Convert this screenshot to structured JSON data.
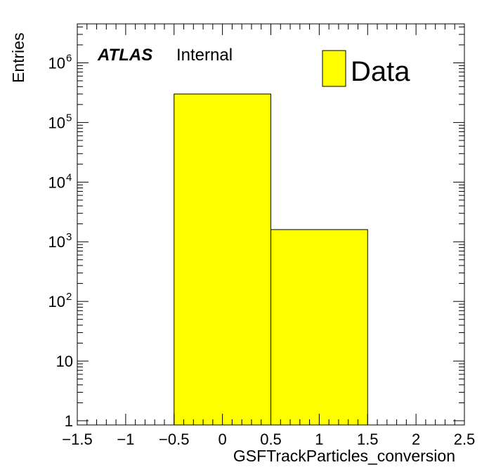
{
  "chart_data": {
    "type": "bar",
    "histogram": true,
    "xlabel": "GSFTrackParticles_conversion",
    "ylabel": "Entries",
    "xlim": [
      -1.5,
      2.5
    ],
    "ylim": [
      0.85,
      4500000
    ],
    "y_scale": "log",
    "grid": false,
    "legend_position": "top-right",
    "bins": [
      {
        "x_low": -0.5,
        "x_high": 0.5,
        "value": 300000
      },
      {
        "x_low": 0.5,
        "x_high": 1.5,
        "value": 1600
      }
    ],
    "series": [
      {
        "name": "Data",
        "color": "#ffff00",
        "values": [
          300000,
          1600
        ]
      }
    ],
    "x_ticks": [
      {
        "value": -1.5,
        "label": "−1.5"
      },
      {
        "value": -1,
        "label": "−1"
      },
      {
        "value": -0.5,
        "label": "−0.5"
      },
      {
        "value": 0,
        "label": "0"
      },
      {
        "value": 0.5,
        "label": "0.5"
      },
      {
        "value": 1,
        "label": "1"
      },
      {
        "value": 1.5,
        "label": "1.5"
      },
      {
        "value": 2,
        "label": "2"
      },
      {
        "value": 2.5,
        "label": "2.5"
      }
    ],
    "y_ticks": [
      {
        "value": 1,
        "base": "1",
        "exp": ""
      },
      {
        "value": 10,
        "base": "10",
        "exp": ""
      },
      {
        "value": 100,
        "base": "10",
        "exp": "2"
      },
      {
        "value": 1000,
        "base": "10",
        "exp": "3"
      },
      {
        "value": 10000,
        "base": "10",
        "exp": "4"
      },
      {
        "value": 100000,
        "base": "10",
        "exp": "5"
      },
      {
        "value": 1000000,
        "base": "10",
        "exp": "6"
      }
    ],
    "annotation": {
      "experiment": "ATLAS",
      "status": "Internal"
    }
  }
}
